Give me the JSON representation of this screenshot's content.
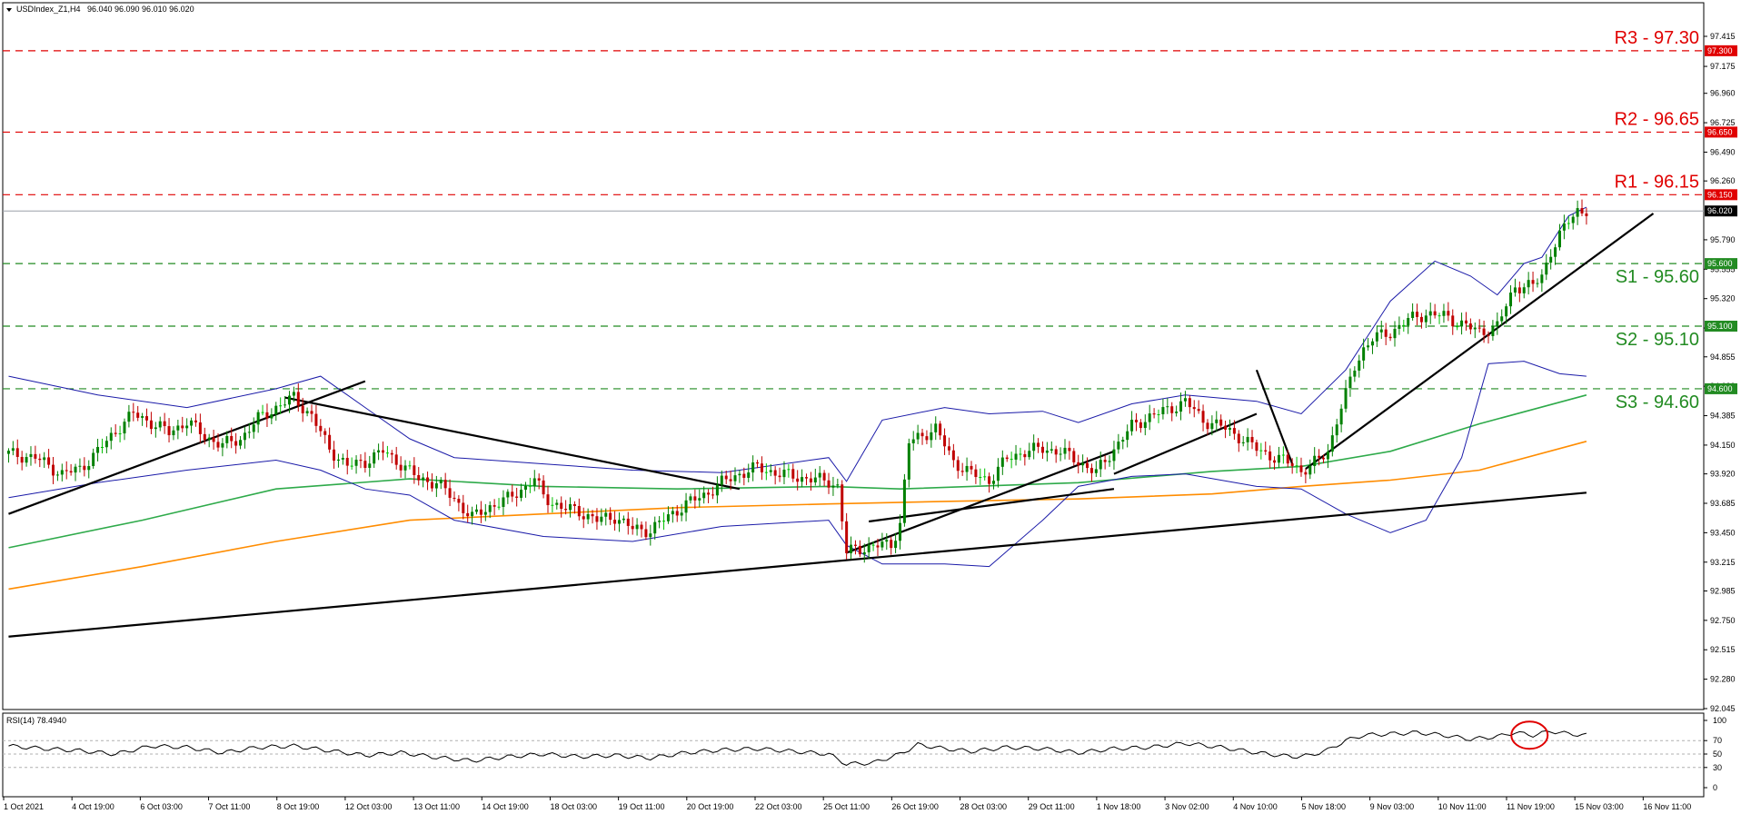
{
  "header": {
    "instrument": "USDIndex_Z1,H4",
    "ohlc": "96.040 96.090 96.010 96.020"
  },
  "rsi_header": "RSI(14) 78.4940",
  "colors": {
    "candle_up": "#008000",
    "candle_down": "#c00000",
    "candle_doji": "#00c000",
    "resistance": "#e00000",
    "support": "#228b22",
    "bollinger": "#1a1aa8",
    "ma_green": "#2eaa4a",
    "ma_orange": "#ff8c00",
    "trendline": "#000000",
    "rsi_line": "#000000",
    "rsi_highlight": "#e00000",
    "price_tag_current": "#000000"
  },
  "chart_data": [
    {
      "type": "candlestick",
      "title": "USDIndex_Z1,H4",
      "y_ticks": [
        "97.415",
        "97.175",
        "96.960",
        "96.725",
        "96.490",
        "96.260",
        "95.790",
        "95.555",
        "95.320",
        "95.085",
        "94.855",
        "94.620",
        "94.385",
        "94.150",
        "93.920",
        "93.685",
        "93.450",
        "93.215",
        "92.985",
        "92.750",
        "92.515",
        "92.280",
        "92.045"
      ],
      "ylim": [
        92.045,
        97.5
      ],
      "x_ticks": [
        "1 Oct 2021",
        "4 Oct 19:00",
        "6 Oct 03:00",
        "7 Oct 11:00",
        "8 Oct 19:00",
        "12 Oct 03:00",
        "13 Oct 11:00",
        "14 Oct 19:00",
        "18 Oct 03:00",
        "19 Oct 11:00",
        "20 Oct 19:00",
        "22 Oct 03:00",
        "25 Oct 11:00",
        "26 Oct 19:00",
        "28 Oct 03:00",
        "29 Oct 11:00",
        "1 Nov 18:00",
        "3 Nov 02:00",
        "4 Nov 10:00",
        "5 Nov 18:00",
        "9 Nov 03:00",
        "10 Nov 11:00",
        "11 Nov 19:00",
        "15 Nov 03:00",
        "16 Nov 11:00"
      ],
      "current_price": "96.020",
      "levels": [
        {
          "name": "R3",
          "value": 97.3,
          "label": "R3 - 97.30",
          "tag": "97.300",
          "kind": "resistance"
        },
        {
          "name": "R2",
          "value": 96.65,
          "label": "R2 - 96.65",
          "tag": "96.650",
          "kind": "resistance"
        },
        {
          "name": "R1",
          "value": 96.15,
          "label": "R1 - 96.15",
          "tag": "96.150",
          "kind": "resistance"
        },
        {
          "name": "S1",
          "value": 95.6,
          "label": "S1 - 95.60",
          "tag": "95.600",
          "kind": "support"
        },
        {
          "name": "S2",
          "value": 95.1,
          "label": "S2 - 95.10",
          "tag": "95.100",
          "kind": "support"
        },
        {
          "name": "S3",
          "value": 94.6,
          "label": "S3 - 94.60",
          "tag": "94.600",
          "kind": "support"
        }
      ],
      "path_points": [
        [
          0,
          94.08
        ],
        [
          6,
          94.05
        ],
        [
          12,
          93.92
        ],
        [
          16,
          93.96
        ],
        [
          20,
          94.1
        ],
        [
          25,
          94.3
        ],
        [
          28,
          94.4
        ],
        [
          32,
          94.33
        ],
        [
          36,
          94.25
        ],
        [
          40,
          94.34
        ],
        [
          44,
          94.22
        ],
        [
          48,
          94.15
        ],
        [
          52,
          94.2
        ],
        [
          56,
          94.36
        ],
        [
          60,
          94.45
        ],
        [
          64,
          94.53
        ],
        [
          68,
          94.38
        ],
        [
          72,
          94.12
        ],
        [
          76,
          93.98
        ],
        [
          80,
          94.02
        ],
        [
          84,
          94.1
        ],
        [
          88,
          94.0
        ],
        [
          92,
          93.88
        ],
        [
          96,
          93.85
        ],
        [
          100,
          93.72
        ],
        [
          104,
          93.57
        ],
        [
          108,
          93.66
        ],
        [
          112,
          93.72
        ],
        [
          116,
          93.82
        ],
        [
          118,
          93.88
        ],
        [
          120,
          93.74
        ],
        [
          124,
          93.65
        ],
        [
          128,
          93.62
        ],
        [
          132,
          93.55
        ],
        [
          136,
          93.58
        ],
        [
          140,
          93.48
        ],
        [
          144,
          93.47
        ],
        [
          148,
          93.58
        ],
        [
          152,
          93.68
        ],
        [
          156,
          93.75
        ],
        [
          160,
          93.85
        ],
        [
          164,
          93.92
        ],
        [
          168,
          93.97
        ],
        [
          172,
          93.93
        ],
        [
          176,
          93.9
        ],
        [
          180,
          93.88
        ],
        [
          184,
          93.86
        ],
        [
          186,
          93.82
        ],
        [
          188,
          93.29
        ],
        [
          190,
          93.32
        ],
        [
          194,
          93.34
        ],
        [
          198,
          93.36
        ],
        [
          200,
          93.52
        ],
        [
          202,
          94.17
        ],
        [
          206,
          94.25
        ],
        [
          208,
          94.28
        ],
        [
          212,
          94.02
        ],
        [
          216,
          93.92
        ],
        [
          220,
          93.87
        ],
        [
          224,
          94.04
        ],
        [
          228,
          94.1
        ],
        [
          232,
          94.12
        ],
        [
          236,
          94.1
        ],
        [
          240,
          94.02
        ],
        [
          244,
          93.93
        ],
        [
          248,
          94.12
        ],
        [
          252,
          94.3
        ],
        [
          256,
          94.38
        ],
        [
          260,
          94.43
        ],
        [
          264,
          94.5
        ],
        [
          268,
          94.35
        ],
        [
          272,
          94.3
        ],
        [
          276,
          94.22
        ],
        [
          280,
          94.12
        ],
        [
          284,
          94.05
        ],
        [
          288,
          94.0
        ],
        [
          290,
          93.95
        ],
        [
          292,
          93.97
        ],
        [
          294,
          94.04
        ],
        [
          296,
          94.1
        ],
        [
          298,
          94.35
        ],
        [
          300,
          94.55
        ],
        [
          302,
          94.78
        ],
        [
          304,
          94.92
        ],
        [
          306,
          95.0
        ],
        [
          310,
          95.05
        ],
        [
          314,
          95.15
        ],
        [
          318,
          95.2
        ],
        [
          322,
          95.18
        ],
        [
          326,
          95.12
        ],
        [
          330,
          95.05
        ],
        [
          334,
          95.1
        ],
        [
          338,
          95.42
        ],
        [
          342,
          95.42
        ],
        [
          344,
          95.5
        ],
        [
          346,
          95.7
        ],
        [
          348,
          95.82
        ],
        [
          350,
          95.94
        ],
        [
          352,
          96.03
        ],
        [
          354,
          96.02
        ]
      ],
      "bb_upper": [
        [
          0,
          94.7
        ],
        [
          20,
          94.55
        ],
        [
          40,
          94.45
        ],
        [
          60,
          94.6
        ],
        [
          70,
          94.7
        ],
        [
          80,
          94.45
        ],
        [
          90,
          94.2
        ],
        [
          100,
          94.05
        ],
        [
          120,
          94.0
        ],
        [
          140,
          93.95
        ],
        [
          160,
          93.93
        ],
        [
          184,
          94.05
        ],
        [
          188,
          93.86
        ],
        [
          196,
          94.35
        ],
        [
          210,
          94.45
        ],
        [
          220,
          94.4
        ],
        [
          232,
          94.42
        ],
        [
          240,
          94.33
        ],
        [
          252,
          94.48
        ],
        [
          264,
          94.55
        ],
        [
          280,
          94.5
        ],
        [
          290,
          94.4
        ],
        [
          300,
          94.75
        ],
        [
          310,
          95.3
        ],
        [
          320,
          95.62
        ],
        [
          328,
          95.5
        ],
        [
          334,
          95.35
        ],
        [
          340,
          95.6
        ],
        [
          344,
          95.65
        ],
        [
          350,
          95.98
        ],
        [
          354,
          96.05
        ]
      ],
      "bb_lower": [
        [
          0,
          93.73
        ],
        [
          20,
          93.85
        ],
        [
          40,
          93.95
        ],
        [
          60,
          94.03
        ],
        [
          70,
          93.95
        ],
        [
          80,
          93.8
        ],
        [
          90,
          93.75
        ],
        [
          100,
          93.55
        ],
        [
          120,
          93.42
        ],
        [
          140,
          93.38
        ],
        [
          160,
          93.5
        ],
        [
          184,
          93.55
        ],
        [
          188,
          93.35
        ],
        [
          196,
          93.2
        ],
        [
          210,
          93.2
        ],
        [
          220,
          93.18
        ],
        [
          232,
          93.55
        ],
        [
          240,
          93.82
        ],
        [
          252,
          93.9
        ],
        [
          264,
          93.92
        ],
        [
          280,
          93.82
        ],
        [
          290,
          93.8
        ],
        [
          300,
          93.6
        ],
        [
          310,
          93.45
        ],
        [
          318,
          93.55
        ],
        [
          326,
          94.05
        ],
        [
          332,
          94.8
        ],
        [
          340,
          94.82
        ],
        [
          348,
          94.72
        ],
        [
          354,
          94.7
        ]
      ],
      "ma_green": [
        [
          0,
          93.33
        ],
        [
          30,
          93.55
        ],
        [
          60,
          93.8
        ],
        [
          90,
          93.88
        ],
        [
          120,
          93.82
        ],
        [
          150,
          93.8
        ],
        [
          184,
          93.82
        ],
        [
          200,
          93.8
        ],
        [
          240,
          93.85
        ],
        [
          270,
          93.94
        ],
        [
          290,
          93.98
        ],
        [
          310,
          94.1
        ],
        [
          330,
          94.32
        ],
        [
          354,
          94.55
        ]
      ],
      "ma_orange": [
        [
          0,
          93.0
        ],
        [
          30,
          93.18
        ],
        [
          60,
          93.38
        ],
        [
          90,
          93.55
        ],
        [
          120,
          93.6
        ],
        [
          150,
          93.65
        ],
        [
          184,
          93.68
        ],
        [
          210,
          93.7
        ],
        [
          240,
          93.72
        ],
        [
          270,
          93.76
        ],
        [
          290,
          93.82
        ],
        [
          310,
          93.87
        ],
        [
          330,
          93.95
        ],
        [
          354,
          94.18
        ]
      ],
      "trendlines": [
        [
          [
            0,
            92.62
          ],
          [
            354,
            93.77
          ]
        ],
        [
          [
            0,
            93.6
          ],
          [
            80,
            94.66
          ]
        ],
        [
          [
            62,
            94.53
          ],
          [
            164,
            93.8
          ]
        ],
        [
          [
            188,
            93.29
          ],
          [
            248,
            94.1
          ]
        ],
        [
          [
            280,
            94.75
          ],
          [
            288,
            94.0
          ]
        ],
        [
          [
            248,
            93.92
          ],
          [
            280,
            94.4
          ]
        ],
        [
          [
            291,
            93.96
          ],
          [
            369,
            96.0
          ]
        ],
        [
          [
            193,
            93.54
          ],
          [
            248,
            93.8
          ]
        ]
      ],
      "bars_total": 380
    },
    {
      "type": "line",
      "title": "RSI(14) 78.4940",
      "y_ticks": [
        "100",
        "70",
        "50",
        "30",
        "0"
      ],
      "ylim": [
        0,
        100
      ],
      "highlight_circle_at": [
        340,
        78
      ],
      "values": [
        [
          0,
          62
        ],
        [
          8,
          58
        ],
        [
          16,
          55
        ],
        [
          24,
          50
        ],
        [
          32,
          62
        ],
        [
          40,
          60
        ],
        [
          48,
          52
        ],
        [
          56,
          60
        ],
        [
          64,
          62
        ],
        [
          72,
          55
        ],
        [
          80,
          48
        ],
        [
          88,
          52
        ],
        [
          96,
          45
        ],
        [
          104,
          40
        ],
        [
          112,
          46
        ],
        [
          120,
          50
        ],
        [
          128,
          46
        ],
        [
          136,
          48
        ],
        [
          144,
          44
        ],
        [
          152,
          52
        ],
        [
          160,
          56
        ],
        [
          168,
          58
        ],
        [
          176,
          54
        ],
        [
          184,
          50
        ],
        [
          188,
          35
        ],
        [
          194,
          37
        ],
        [
          200,
          50
        ],
        [
          204,
          64
        ],
        [
          210,
          58
        ],
        [
          216,
          54
        ],
        [
          224,
          60
        ],
        [
          232,
          58
        ],
        [
          240,
          52
        ],
        [
          248,
          58
        ],
        [
          256,
          60
        ],
        [
          264,
          66
        ],
        [
          272,
          60
        ],
        [
          280,
          52
        ],
        [
          288,
          46
        ],
        [
          292,
          48
        ],
        [
          296,
          56
        ],
        [
          300,
          70
        ],
        [
          304,
          78
        ],
        [
          310,
          80
        ],
        [
          316,
          82
        ],
        [
          322,
          78
        ],
        [
          328,
          72
        ],
        [
          334,
          76
        ],
        [
          338,
          82
        ],
        [
          342,
          78
        ],
        [
          346,
          84
        ],
        [
          350,
          80
        ],
        [
          354,
          78
        ]
      ]
    }
  ]
}
